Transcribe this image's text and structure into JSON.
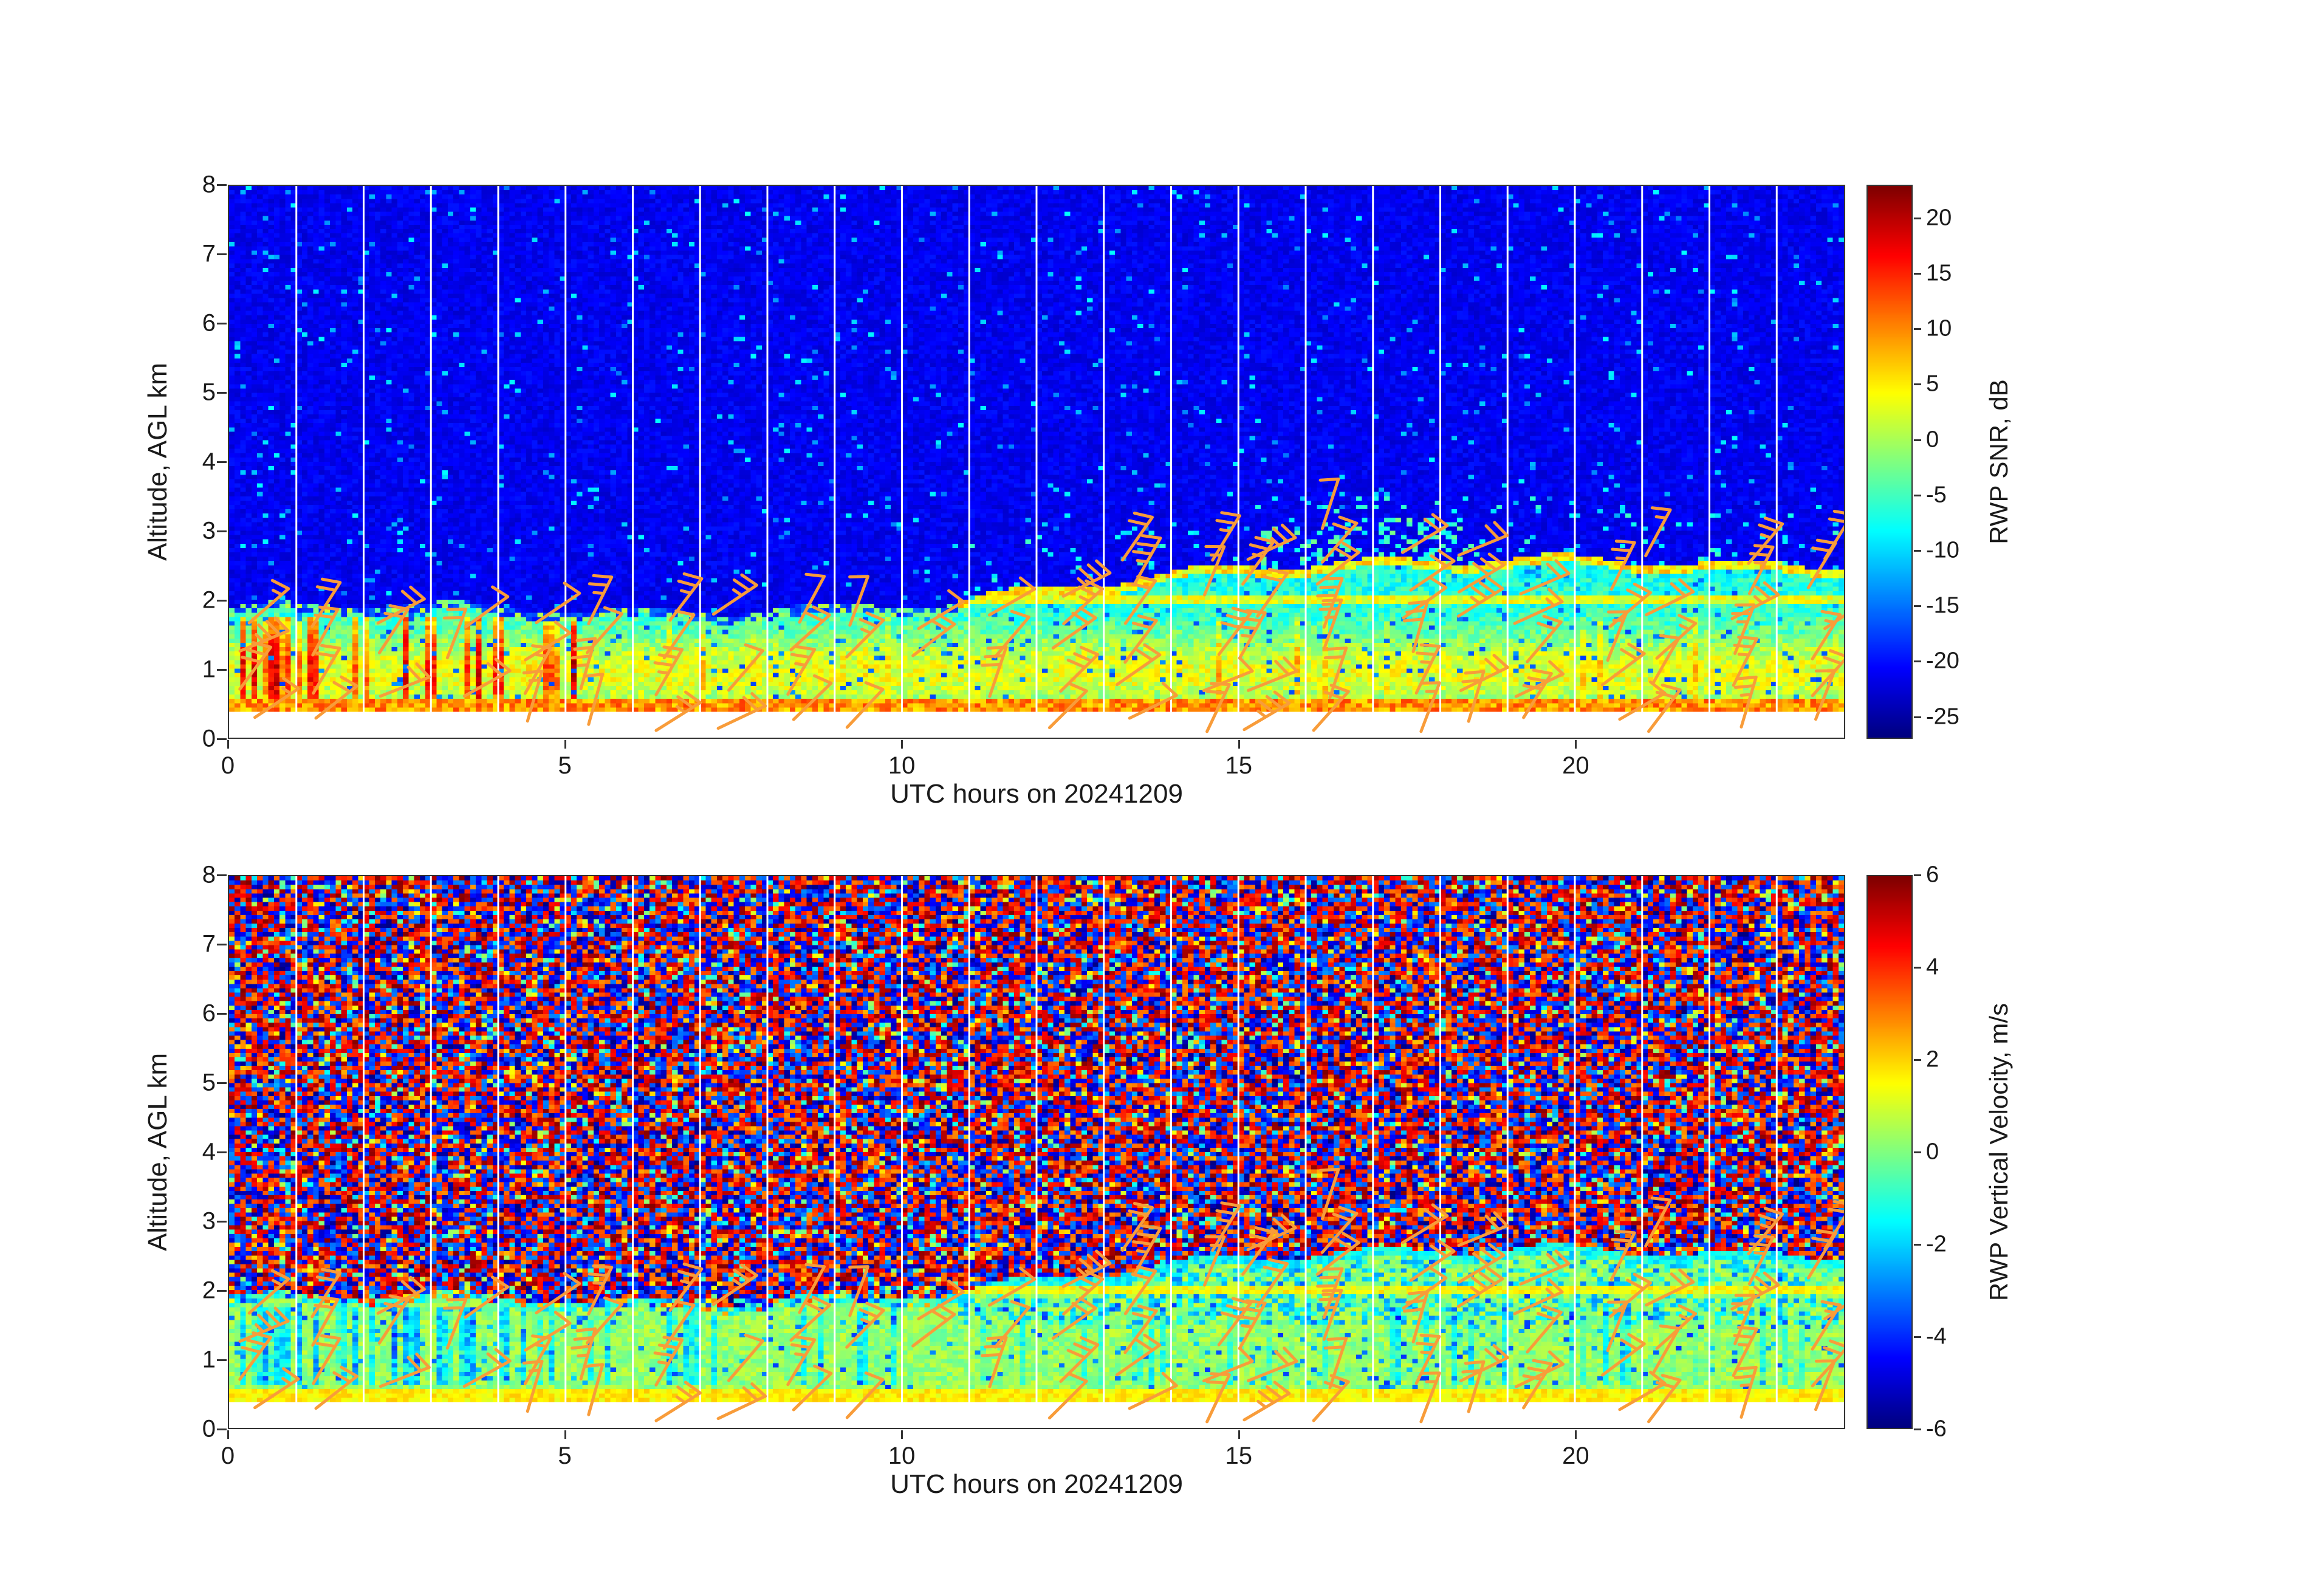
{
  "figure": {
    "kind": "radar-wind-profiler-quicklook",
    "background": "#ffffff",
    "text_color": "#1a1a1a",
    "axis_color": "#333333",
    "wind_barb_color": "#f89c3a",
    "data_gap_color": "#ffffff"
  },
  "chart_data": [
    {
      "type": "heatmap",
      "panel": "top",
      "title": "",
      "xlabel": "UTC hours on 20241209",
      "ylabel": "Altitude, AGL km",
      "xlim": [
        0,
        24
      ],
      "ylim": [
        0,
        8
      ],
      "x_ticks": [
        0,
        5,
        10,
        15,
        20
      ],
      "y_ticks": [
        0,
        1,
        2,
        3,
        4,
        5,
        6,
        7,
        8
      ],
      "colormap": "jet",
      "grid": false,
      "colorbar": {
        "label": "RWP SNR, dB",
        "min": -27,
        "max": 23,
        "ticks": [
          20,
          15,
          10,
          5,
          0,
          -5,
          -10,
          -15,
          -20,
          -25
        ],
        "position": "right"
      },
      "overlay": "orange wind barbs roughly hourly below ~3 km; thin white vertical data-gap lines near each hour",
      "content_summary": "Time-height plot of radar wind profiler SNR. High SNR (0 to +20 dB; green/yellow/red) in the boundary layer below ~1.9 km before 11 UTC, with the layer top rising to ~2.5 km between 11 and 15 UTC and staying there through 24 UTC. Persistent bright yellow band near 0.5 km all day; strongest red vertical streaks 0-5 UTC between 0.5 and 1.6 km; bright green-yellow cap layer near 2.0-2.5 km after 11 UTC with cyan patches near 2.5-3 km around 16-18 UTC. Clear air above is low SNR (~ -22 dB, dark blue) with sparse cyan speckle. No data below ~0.4 km (white)."
    },
    {
      "type": "heatmap",
      "panel": "bottom",
      "title": "",
      "xlabel": "UTC hours on 20241209",
      "ylabel": "Altitude, AGL km",
      "xlim": [
        0,
        24
      ],
      "ylim": [
        0,
        8
      ],
      "x_ticks": [
        0,
        5,
        10,
        15,
        20
      ],
      "y_ticks": [
        0,
        1,
        2,
        3,
        4,
        5,
        6,
        7,
        8
      ],
      "colormap": "jet",
      "grid": false,
      "colorbar": {
        "label": "RWP Vertical Velocity, m/s",
        "min": -6,
        "max": 6,
        "ticks": [
          6,
          4,
          2,
          0,
          -2,
          -4,
          -6
        ],
        "position": "right"
      },
      "overlay": "orange wind barbs roughly hourly below ~3 km; thin white vertical data-gap lines near each hour",
      "content_summary": "Time-height plot of radar wind profiler vertical velocity. Coherent near-zero velocities (about -1 to +2 m/s; green/yellow with cyan-blue downdraft patches, strongest 0-4 UTC between 0.7 and 1.7 km) inside the boundary layer, whose top rises from ~1.9 km to ~2.5 km after 11 UTC. Yellow band (~ +1.5 m/s) near 0.5 km. Above the boundary layer the field is uncorrelated noise spanning the full ±6 m/s range (saturated dark red / dark blue speckle). No data below ~0.4 km (white)."
    }
  ],
  "wind_barbs": {
    "color": "#f89c3a",
    "spacing_hours": 1,
    "base_levels_km": [
      0.08,
      0.58,
      1.08,
      1.58
    ],
    "extra_levels_km": [
      2.05,
      2.5,
      2.95
    ],
    "extend_above_2km_after_hour": 11.5,
    "direction": "staffs point up-right with 1-3 flags"
  },
  "render": {
    "grid_cols": 288,
    "grid_rows": 128,
    "seed": 20241209,
    "no_data_below_km": 0.4,
    "surface_band_top_km": 0.58,
    "boundary": {
      "early_top_km": 1.88,
      "ramp_start_hour": 10.5,
      "ramp_end_hour": 15,
      "late_top_km": 2.55
    },
    "gap_hours": [
      1,
      2,
      3,
      4,
      5,
      6,
      7,
      8,
      9,
      10,
      11,
      12,
      13,
      14,
      15,
      16,
      17,
      18,
      19,
      20,
      21,
      22,
      23
    ]
  }
}
